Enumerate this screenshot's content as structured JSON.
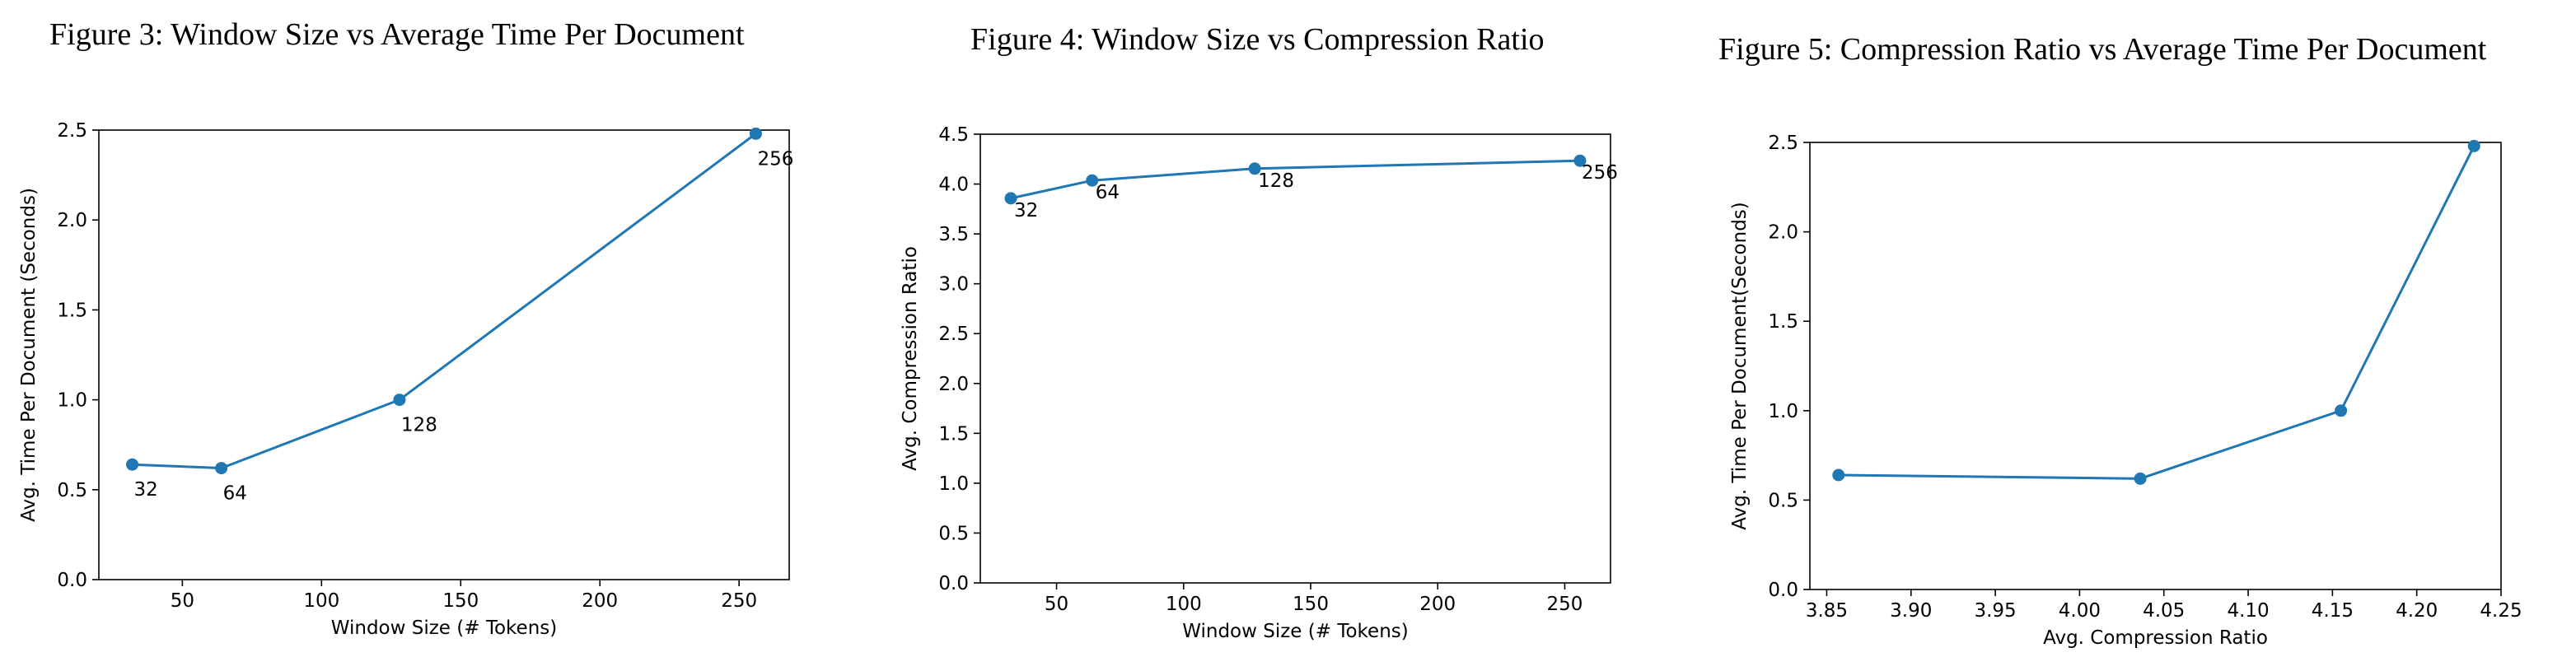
{
  "colors": {
    "series": "#1f77b4",
    "axis": "#000000",
    "background": "#ffffff"
  },
  "chart_data": [
    {
      "type": "line",
      "title": "Figure 3: Window Size vs Average Time Per Document",
      "xlabel": "Window Size (# Tokens)",
      "ylabel": "Avg. Time Per Document (Seconds)",
      "x": [
        32,
        64,
        128,
        256
      ],
      "series": [
        {
          "values": [
            0.64,
            0.62,
            1.0,
            2.48
          ]
        }
      ],
      "point_labels": [
        "32",
        "64",
        "128",
        "256"
      ],
      "xlim": [
        20,
        268
      ],
      "ylim": [
        0,
        2.5
      ],
      "xticks": [
        50,
        100,
        150,
        200,
        250
      ],
      "yticks": [
        0.0,
        0.5,
        1.0,
        1.5,
        2.0,
        2.5
      ],
      "x_tick_labels": [
        "50",
        "100",
        "150",
        "200",
        "250"
      ],
      "y_tick_labels": [
        "0.0",
        "0.5",
        "1.0",
        "1.5",
        "2.0",
        "2.5"
      ],
      "grid": false,
      "legend": "none"
    },
    {
      "type": "line",
      "title": "Figure 4: Window Size vs Compression Ratio",
      "xlabel": "Window Size (# Tokens)",
      "ylabel": "Avg. Compression Ratio",
      "x": [
        32,
        64,
        128,
        256
      ],
      "series": [
        {
          "values": [
            3.857,
            4.036,
            4.155,
            4.234
          ]
        }
      ],
      "point_labels": [
        "32",
        "64",
        "128",
        "256"
      ],
      "xlim": [
        20,
        268
      ],
      "ylim": [
        0,
        4.5
      ],
      "xticks": [
        50,
        100,
        150,
        200,
        250
      ],
      "yticks": [
        0.0,
        0.5,
        1.0,
        1.5,
        2.0,
        2.5,
        3.0,
        3.5,
        4.0,
        4.5
      ],
      "x_tick_labels": [
        "50",
        "100",
        "150",
        "200",
        "250"
      ],
      "y_tick_labels": [
        "0.0",
        "0.5",
        "1.0",
        "1.5",
        "2.0",
        "2.5",
        "3.0",
        "3.5",
        "4.0",
        "4.5"
      ],
      "grid": false,
      "legend": "none"
    },
    {
      "type": "line",
      "title": "Figure 5: Compression Ratio vs Average Time Per Document",
      "xlabel": "Avg. Compression Ratio",
      "ylabel": "Avg. Time Per Document(Seconds)",
      "x": [
        3.857,
        4.036,
        4.155,
        4.234
      ],
      "series": [
        {
          "values": [
            0.64,
            0.62,
            1.0,
            2.48
          ]
        }
      ],
      "point_labels": [],
      "xlim": [
        3.84,
        4.25
      ],
      "ylim": [
        0,
        2.5
      ],
      "xticks": [
        3.85,
        3.9,
        3.95,
        4.0,
        4.05,
        4.1,
        4.15,
        4.2,
        4.25
      ],
      "yticks": [
        0.0,
        0.5,
        1.0,
        1.5,
        2.0,
        2.5
      ],
      "x_tick_labels": [
        "3.85",
        "3.90",
        "3.95",
        "4.00",
        "4.05",
        "4.10",
        "4.15",
        "4.20",
        "4.25"
      ],
      "y_tick_labels": [
        "0.0",
        "0.5",
        "1.0",
        "1.5",
        "2.0",
        "2.5"
      ],
      "grid": false,
      "legend": "none"
    }
  ]
}
